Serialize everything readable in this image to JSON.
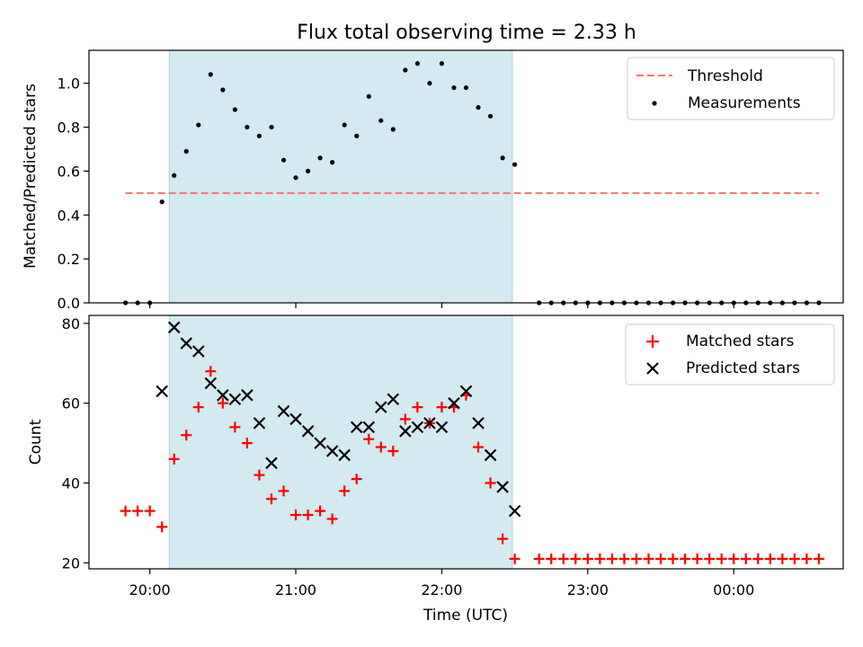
{
  "chart_data": [
    {
      "type": "scatter",
      "title": "Flux total observing time = 2.33 h",
      "xlabel": "",
      "ylabel": "Matched/Predicted stars",
      "x_range": [
        "19:35",
        "00:45"
      ],
      "ylim": [
        0,
        1.15
      ],
      "y_ticks": [
        "0.0",
        "0.2",
        "0.4",
        "0.6",
        "0.8",
        "1.0"
      ],
      "highlight_span": [
        "20:08",
        "22:29"
      ],
      "highlight_color": "#d3eaf0",
      "legend_position": "upper right",
      "threshold": {
        "name": "Threshold",
        "value": 0.5,
        "x_from": "19:50",
        "x_to": "00:35",
        "color": "#ff7070"
      },
      "series": [
        {
          "name": "Measurements",
          "color": "#000000",
          "marker": "dot",
          "x": [
            "19:50",
            "19:55",
            "20:00",
            "20:05",
            "20:10",
            "20:15",
            "20:20",
            "20:25",
            "20:30",
            "20:35",
            "20:40",
            "20:45",
            "20:50",
            "20:55",
            "21:00",
            "21:05",
            "21:10",
            "21:15",
            "21:20",
            "21:25",
            "21:30",
            "21:35",
            "21:40",
            "21:45",
            "21:50",
            "21:55",
            "22:00",
            "22:05",
            "22:10",
            "22:15",
            "22:20",
            "22:25",
            "22:30",
            "22:40",
            "22:45",
            "22:50",
            "22:55",
            "23:00",
            "23:05",
            "23:10",
            "23:15",
            "23:20",
            "23:25",
            "23:30",
            "23:35",
            "23:40",
            "23:45",
            "23:50",
            "23:55",
            "00:00",
            "00:05",
            "00:10",
            "00:15",
            "00:20",
            "00:25",
            "00:30",
            "00:35"
          ],
          "y": [
            0,
            0,
            0,
            0.46,
            0.58,
            0.69,
            0.81,
            1.04,
            0.97,
            0.88,
            0.8,
            0.76,
            0.8,
            0.65,
            0.57,
            0.6,
            0.66,
            0.64,
            0.81,
            0.76,
            0.94,
            0.83,
            0.79,
            1.06,
            1.09,
            1.0,
            1.09,
            0.98,
            0.98,
            0.89,
            0.85,
            0.66,
            0.63,
            0,
            0,
            0,
            0,
            0,
            0,
            0,
            0,
            0,
            0,
            0,
            0,
            0,
            0,
            0,
            0,
            0,
            0,
            0,
            0,
            0,
            0,
            0,
            0
          ]
        }
      ]
    },
    {
      "type": "scatter",
      "title": "",
      "xlabel": "Time (UTC)",
      "ylabel": "Count",
      "x_range": [
        "19:35",
        "00:45"
      ],
      "x_ticks": [
        "20:00",
        "21:00",
        "22:00",
        "23:00",
        "00:00"
      ],
      "ylim": [
        18.5,
        82
      ],
      "y_ticks": [
        "20",
        "40",
        "60",
        "80"
      ],
      "highlight_span": [
        "20:08",
        "22:29"
      ],
      "highlight_color": "#d3eaf0",
      "legend_position": "upper right",
      "series": [
        {
          "name": "Matched stars",
          "color": "#ff0000",
          "marker": "plus",
          "x": [
            "19:50",
            "19:55",
            "20:00",
            "20:05",
            "20:10",
            "20:15",
            "20:20",
            "20:25",
            "20:30",
            "20:35",
            "20:40",
            "20:45",
            "20:50",
            "20:55",
            "21:00",
            "21:05",
            "21:10",
            "21:15",
            "21:20",
            "21:25",
            "21:30",
            "21:35",
            "21:40",
            "21:45",
            "21:50",
            "21:55",
            "22:00",
            "22:05",
            "22:10",
            "22:15",
            "22:20",
            "22:25",
            "22:30",
            "22:40",
            "22:45",
            "22:50",
            "22:55",
            "23:00",
            "23:05",
            "23:10",
            "23:15",
            "23:20",
            "23:25",
            "23:30",
            "23:35",
            "23:40",
            "23:45",
            "23:50",
            "23:55",
            "00:00",
            "00:05",
            "00:10",
            "00:15",
            "00:20",
            "00:25",
            "00:30",
            "00:35"
          ],
          "y": [
            33,
            33,
            33,
            29,
            46,
            52,
            59,
            68,
            60,
            54,
            50,
            42,
            36,
            38,
            32,
            32,
            33,
            31,
            38,
            41,
            51,
            49,
            48,
            56,
            59,
            55,
            59,
            59,
            62,
            49,
            40,
            26,
            21,
            21,
            21,
            21,
            21,
            21,
            21,
            21,
            21,
            21,
            21,
            21,
            21,
            21,
            21,
            21,
            21,
            21,
            21,
            21,
            21,
            21,
            21,
            21,
            21
          ]
        },
        {
          "name": "Predicted stars",
          "color": "#000000",
          "marker": "x",
          "x": [
            "20:05",
            "20:10",
            "20:15",
            "20:20",
            "20:25",
            "20:30",
            "20:35",
            "20:40",
            "20:45",
            "20:50",
            "20:55",
            "21:00",
            "21:05",
            "21:10",
            "21:15",
            "21:20",
            "21:25",
            "21:30",
            "21:35",
            "21:40",
            "21:45",
            "21:50",
            "21:55",
            "22:00",
            "22:05",
            "22:10",
            "22:15",
            "22:20",
            "22:25",
            "22:30"
          ],
          "y": [
            63,
            79,
            75,
            73,
            65,
            62,
            61,
            62,
            55,
            45,
            58,
            56,
            53,
            50,
            48,
            47,
            54,
            54,
            59,
            61,
            53,
            54,
            55,
            54,
            60,
            63,
            55,
            47,
            39,
            33
          ]
        }
      ]
    }
  ]
}
